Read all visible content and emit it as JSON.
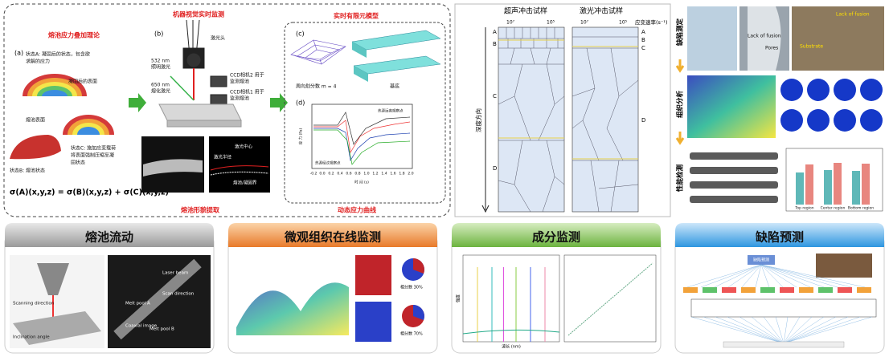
{
  "top_left": {
    "sections": [
      "熔池应力叠加理论",
      "机器视觉实时监测",
      "实时有限元模型",
      "熔池形貌提取",
      "动态应力曲线"
    ],
    "panel_a": {
      "label": "(a)",
      "state_a_1": "状态A: 凝固后的状态，包含欲",
      "state_a_2": "求解的应力",
      "solidified_surface": "凝固后的表面",
      "pool_surface": "熔池表面",
      "state_c_1": "状态C: 施加应变载荷",
      "state_c_2": "将表面强制压缩至凝",
      "state_c_3": "固状态",
      "state_b": "状态B: 熔池状态",
      "equation": "σ(A)(x,y,z) = σ(B)(x,y,z) + σ(C)(x,y,z)"
    },
    "panel_b": {
      "label": "(b)",
      "laser_head": "激光头",
      "laser_532_1": "532 nm",
      "laser_532_2": "照明激光",
      "laser_650_1": "650 nm",
      "laser_650_2": "熔化激光",
      "ccd2_1": "CCD相机2 用于",
      "ccd2_2": "监测熔池",
      "ccd1_1": "CCD相机1 用于",
      "ccd1_2": "监测熔池",
      "laser_center": "激光中心",
      "spot_radius": "激光半径",
      "boundary": "熔池/凝固界"
    },
    "panel_c": {
      "label": "(c)",
      "divisions": "周向划分数   m = 4",
      "substrate": "基底"
    },
    "panel_d": {
      "label": "(d)",
      "ylabel": "应 力 (Pa)",
      "xlabel": "时 间 (s)",
      "annot_far": "热源远离观察点",
      "annot_pass": "热源经过观察点",
      "xticks": [
        "-0.2",
        "0.0",
        "0.2",
        "0.4",
        "0.6",
        "0.8",
        "1.0",
        "1.2",
        "1.4",
        "1.6",
        "1.8",
        "2.0"
      ]
    }
  },
  "grain": {
    "left_title": "超声冲击试样",
    "right_title": "激光冲击试样",
    "rate_label": "应变速率(s⁻¹)",
    "left_ticks": [
      "10⁷",
      "10⁵"
    ],
    "right_ticks": [
      "10⁷",
      "10⁵"
    ],
    "depth": "深度方向",
    "left_zones": [
      "A",
      "B",
      "C",
      "D"
    ],
    "right_zones": [
      "A",
      "B",
      "C",
      "D"
    ]
  },
  "right_col": {
    "rows": [
      "缺陷测定",
      "组织分析",
      "性能检测"
    ],
    "lack_of_fusion_1": "Lack of fusion",
    "pores": "Pores",
    "lack_of_fusion_2": "Lack of fusion",
    "substrate": "Substrate",
    "bar_groups": [
      "Top region",
      "Center region",
      "Bottom region"
    ]
  },
  "cards": [
    {
      "title": "熔池流动",
      "labels": [
        "Laser beam",
        "Melt pool A",
        "Melt pool B",
        "Scan direction",
        "Coaxial image",
        "Scanning direction",
        "Inclination angle"
      ]
    },
    {
      "title": "微观组织在线监测",
      "labels": [
        "相分数 30%",
        "相分数 70%"
      ]
    },
    {
      "title": "成分监测",
      "labels": [
        "强度",
        "波长 (nm)"
      ]
    },
    {
      "title": "缺陷预测",
      "labels": [
        "缺陷预测"
      ]
    }
  ]
}
